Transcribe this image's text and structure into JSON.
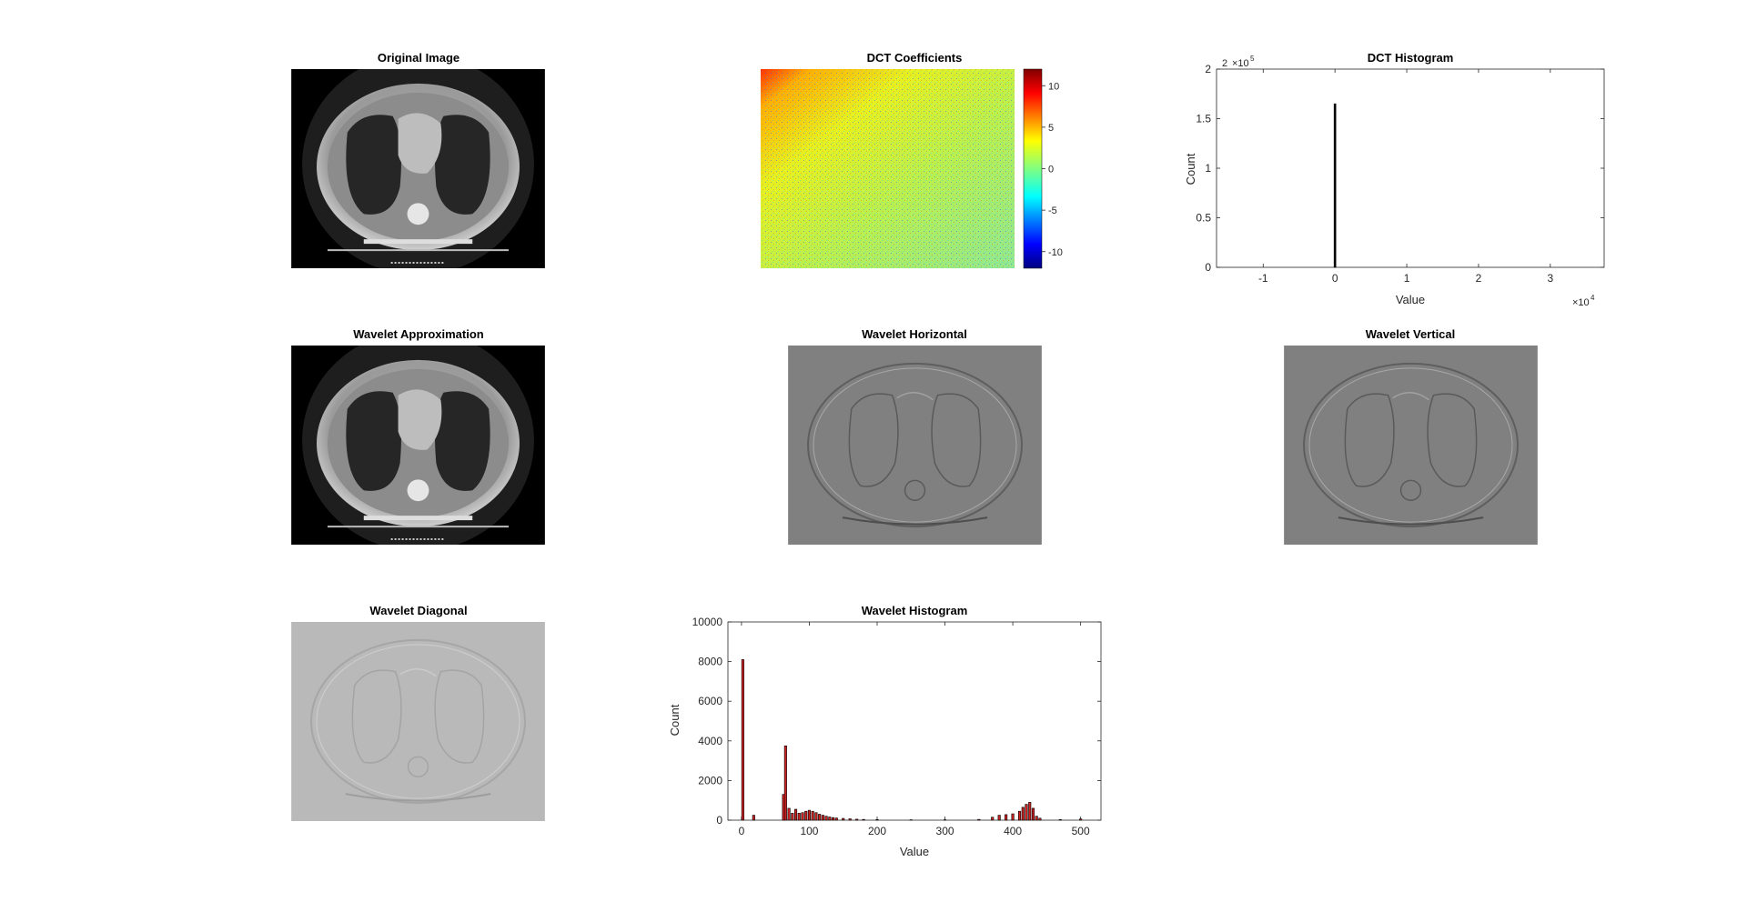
{
  "figure": {
    "panels": {
      "original": {
        "title": "Original Image"
      },
      "dct": {
        "title": "DCT Coefficients",
        "colorbar_ticks": [
          10,
          5,
          0,
          -5,
          -10
        ]
      },
      "dct_hist": {
        "title": "DCT Histogram"
      },
      "approx": {
        "title": "Wavelet Approximation"
      },
      "horiz": {
        "title": "Wavelet Horizontal"
      },
      "vert": {
        "title": "Wavelet Vertical"
      },
      "diag": {
        "title": "Wavelet Diagonal"
      },
      "wave_hist": {
        "title": "Wavelet Histogram"
      }
    }
  },
  "chart_data": [
    {
      "type": "bar",
      "title": "DCT Histogram",
      "xlabel": "Value",
      "ylabel": "Count",
      "x_multiplier": "×10^4",
      "y_multiplier": "×10^5",
      "xlim": [
        -1.65,
        3.75
      ],
      "ylim": [
        0,
        2
      ],
      "xticks": [
        -1,
        0,
        1,
        2,
        3
      ],
      "yticks": [
        0,
        0.5,
        1,
        1.5,
        2
      ],
      "bars": [
        {
          "x": 0,
          "value": 1.65
        }
      ],
      "bar_color": "#000000"
    },
    {
      "type": "bar",
      "title": "Wavelet Histogram",
      "xlabel": "Value",
      "ylabel": "Count",
      "xlim": [
        -20,
        530
      ],
      "ylim": [
        0,
        10000
      ],
      "xticks": [
        0,
        100,
        200,
        300,
        400,
        500
      ],
      "yticks": [
        0,
        2000,
        4000,
        6000,
        8000,
        10000
      ],
      "bar_color": "#cc2222",
      "bars": [
        {
          "x": 2,
          "value": 8100
        },
        {
          "x": 18,
          "value": 250
        },
        {
          "x": 62,
          "value": 1300
        },
        {
          "x": 65,
          "value": 3750
        },
        {
          "x": 70,
          "value": 600
        },
        {
          "x": 75,
          "value": 350
        },
        {
          "x": 80,
          "value": 550
        },
        {
          "x": 85,
          "value": 350
        },
        {
          "x": 90,
          "value": 380
        },
        {
          "x": 95,
          "value": 450
        },
        {
          "x": 100,
          "value": 500
        },
        {
          "x": 105,
          "value": 450
        },
        {
          "x": 110,
          "value": 380
        },
        {
          "x": 115,
          "value": 300
        },
        {
          "x": 120,
          "value": 250
        },
        {
          "x": 125,
          "value": 200
        },
        {
          "x": 130,
          "value": 160
        },
        {
          "x": 135,
          "value": 130
        },
        {
          "x": 140,
          "value": 110
        },
        {
          "x": 150,
          "value": 90
        },
        {
          "x": 160,
          "value": 70
        },
        {
          "x": 170,
          "value": 50
        },
        {
          "x": 180,
          "value": 40
        },
        {
          "x": 200,
          "value": 30
        },
        {
          "x": 250,
          "value": 20
        },
        {
          "x": 300,
          "value": 20
        },
        {
          "x": 350,
          "value": 40
        },
        {
          "x": 370,
          "value": 150
        },
        {
          "x": 380,
          "value": 250
        },
        {
          "x": 390,
          "value": 280
        },
        {
          "x": 400,
          "value": 320
        },
        {
          "x": 410,
          "value": 450
        },
        {
          "x": 415,
          "value": 650
        },
        {
          "x": 420,
          "value": 800
        },
        {
          "x": 425,
          "value": 900
        },
        {
          "x": 430,
          "value": 600
        },
        {
          "x": 435,
          "value": 200
        },
        {
          "x": 440,
          "value": 100
        },
        {
          "x": 470,
          "value": 30
        },
        {
          "x": 500,
          "value": 60
        }
      ]
    }
  ]
}
